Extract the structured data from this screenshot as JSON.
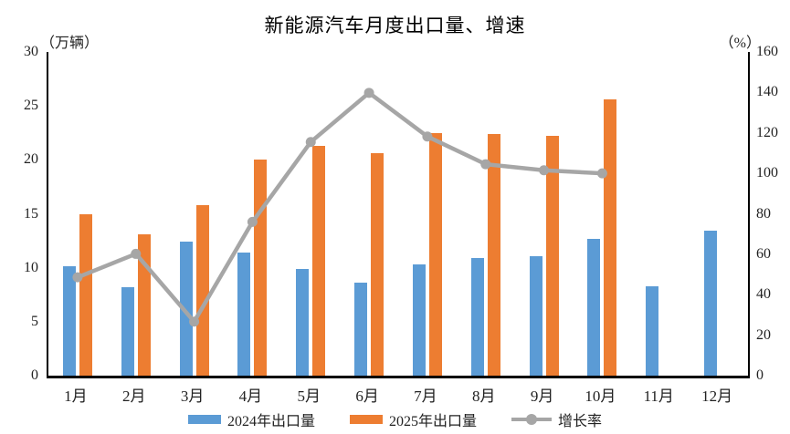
{
  "title": "新能源汽车月度出口量、增速",
  "left_axis": {
    "unit": "（万辆）",
    "ticks": [
      0,
      5,
      10,
      15,
      20,
      25,
      30
    ],
    "max": 30
  },
  "right_axis": {
    "unit": "（%）",
    "ticks": [
      0,
      20,
      40,
      60,
      80,
      100,
      120,
      140,
      160
    ],
    "max": 160
  },
  "legend": {
    "items": [
      {
        "label": "2024年出口量",
        "type": "bar",
        "color": "#5B9BD5"
      },
      {
        "label": "2025年出口量",
        "type": "bar",
        "color": "#ED7D31"
      },
      {
        "label": "增长率",
        "type": "line",
        "color": "#A6A6A6"
      }
    ]
  },
  "colors": {
    "bar_2024": "#5B9BD5",
    "bar_2025": "#ED7D31",
    "growth_line": "#A6A6A6",
    "axis": "#000000"
  },
  "chart_data": {
    "type": "bar",
    "subtype": "clustered-bars-with-line",
    "title": "新能源汽车月度出口量、增速",
    "categories": [
      "1月",
      "2月",
      "3月",
      "4月",
      "5月",
      "6月",
      "7月",
      "8月",
      "9月",
      "10月",
      "11月",
      "12月"
    ],
    "series": [
      {
        "name": "2024年出口量",
        "type": "bar",
        "axis": "left",
        "unit": "万辆",
        "color": "#5B9BD5",
        "values": [
          10.1,
          8.2,
          12.4,
          11.4,
          9.9,
          8.6,
          10.3,
          10.9,
          11.1,
          12.7,
          8.3,
          13.4
        ]
      },
      {
        "name": "2025年出口量",
        "type": "bar",
        "axis": "left",
        "unit": "万辆",
        "color": "#ED7D31",
        "values": [
          15.0,
          13.1,
          15.8,
          20.0,
          21.3,
          20.6,
          22.5,
          22.4,
          22.2,
          25.6,
          null,
          null
        ]
      },
      {
        "name": "增长率",
        "type": "line",
        "axis": "right",
        "unit": "%",
        "color": "#A6A6A6",
        "values": [
          48.6,
          60.2,
          26.7,
          76.0,
          115.5,
          139.8,
          118.2,
          104.5,
          101.5,
          100.0,
          null,
          null
        ]
      }
    ],
    "xlabel": "",
    "ylabel_left": "（万辆）",
    "ylabel_right": "（%）",
    "ylim_left": [
      0,
      30
    ],
    "ylim_right": [
      0,
      160
    ],
    "grid": false,
    "legend_position": "bottom"
  }
}
